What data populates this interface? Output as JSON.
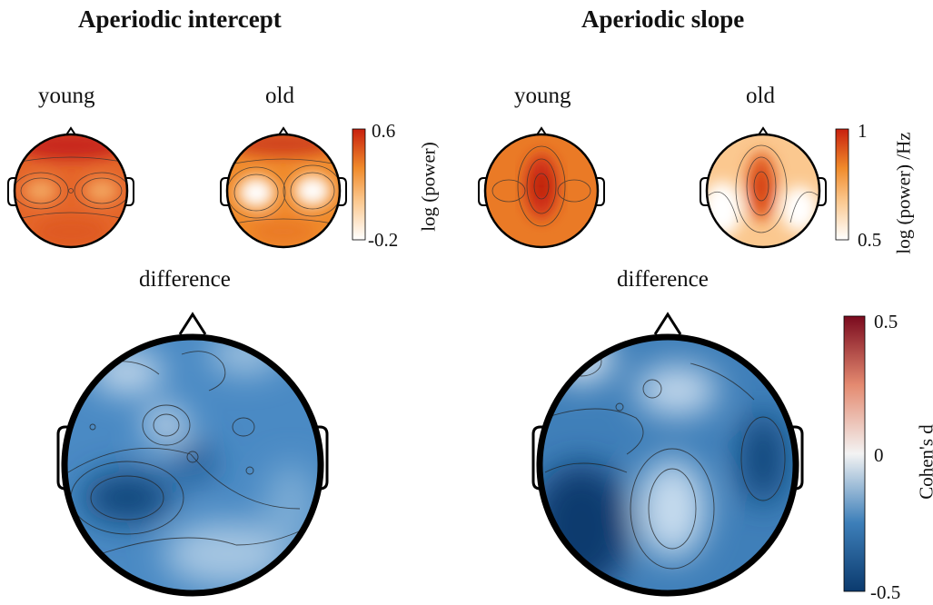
{
  "panels": {
    "intercept": {
      "title": "Aperiodic intercept",
      "young_label": "young",
      "old_label": "old",
      "difference_label": "difference",
      "colorbar": {
        "max_label": "0.6",
        "min_label": "-0.2",
        "axis_label": "log (power)"
      }
    },
    "slope": {
      "title": "Aperiodic slope",
      "young_label": "young",
      "old_label": "old",
      "difference_label": "difference",
      "colorbar": {
        "max_label": "1",
        "min_label": "0.5",
        "axis_label": "log (power) /Hz"
      }
    },
    "effect_colorbar": {
      "max_label": "0.5",
      "mid_label": "0",
      "min_label": "-0.5",
      "axis_label": "Cohen's d"
    }
  },
  "chart_data": [
    {
      "type": "heatmap",
      "title": "Aperiodic intercept",
      "map": "young",
      "colorbar_range": [
        -0.2,
        0.6
      ],
      "colorbar_label": "log (power)"
    },
    {
      "type": "heatmap",
      "title": "Aperiodic intercept",
      "map": "old",
      "colorbar_range": [
        -0.2,
        0.6
      ],
      "colorbar_label": "log (power)"
    },
    {
      "type": "heatmap",
      "title": "Aperiodic intercept",
      "map": "difference",
      "colorbar_range": [
        -0.5,
        0.5
      ],
      "colorbar_label": "Cohen's d"
    },
    {
      "type": "heatmap",
      "title": "Aperiodic slope",
      "map": "young",
      "colorbar_range": [
        0.5,
        1
      ],
      "colorbar_label": "log (power) /Hz"
    },
    {
      "type": "heatmap",
      "title": "Aperiodic slope",
      "map": "old",
      "colorbar_range": [
        0.5,
        1
      ],
      "colorbar_label": "log (power) /Hz"
    },
    {
      "type": "heatmap",
      "title": "Aperiodic slope",
      "map": "difference",
      "colorbar_range": [
        -0.5,
        0.5
      ],
      "colorbar_label": "Cohen's d"
    }
  ],
  "colors": {
    "orange_low": "#ffffff",
    "orange_mid": "#f08a2a",
    "orange_high": "#c8200e",
    "diverging_low": "#0b3a6e",
    "diverging_mid": "#f3f3f3",
    "diverging_high": "#7a0a1e",
    "outline": "#000000"
  }
}
